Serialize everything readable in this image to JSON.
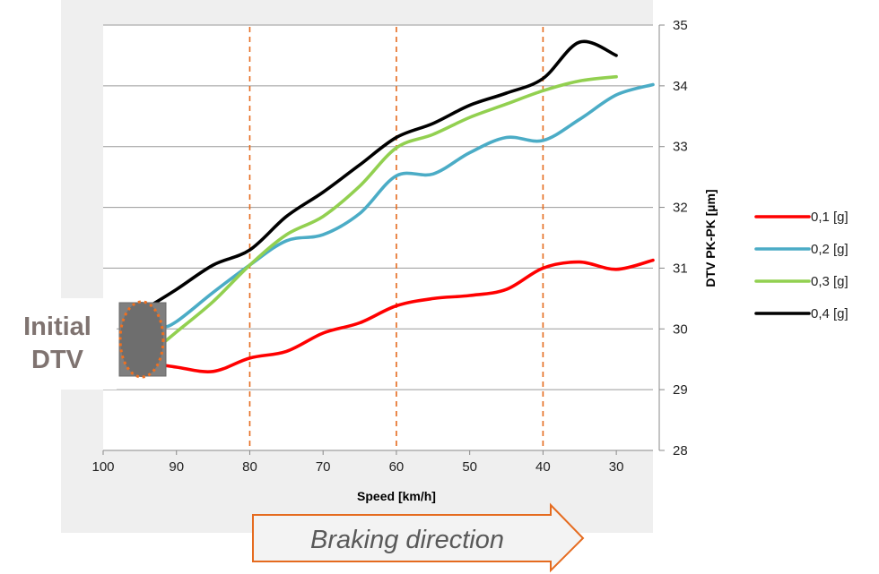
{
  "chart_data": {
    "type": "line",
    "xlabel": "Speed [km/h]",
    "ylabel": "DTV PK-PK [µm]",
    "xlim": [
      100,
      25
    ],
    "ylim": [
      28,
      35
    ],
    "x_ticks": [
      100,
      90,
      80,
      70,
      60,
      50,
      40,
      30
    ],
    "y_ticks": [
      28,
      29,
      30,
      31,
      32,
      33,
      34,
      35
    ],
    "y_axis_side": "right",
    "grid": "horizontal",
    "x_reference_lines": [
      80,
      60,
      40
    ],
    "legend_position": "right",
    "series": [
      {
        "name": "0,1 [g]",
        "color": "#ff0000",
        "points": [
          [
            94,
            29.45
          ],
          [
            90,
            29.37
          ],
          [
            85,
            29.3
          ],
          [
            80,
            29.52
          ],
          [
            75,
            29.63
          ],
          [
            70,
            29.93
          ],
          [
            65,
            30.1
          ],
          [
            60,
            30.38
          ],
          [
            55,
            30.5
          ],
          [
            50,
            30.55
          ],
          [
            45,
            30.65
          ],
          [
            40,
            31.0
          ],
          [
            35,
            31.1
          ],
          [
            30,
            30.98
          ],
          [
            25,
            31.13
          ]
        ]
      },
      {
        "name": "0,2 [g]",
        "color": "#4bacc6",
        "points": [
          [
            94,
            30.25
          ],
          [
            92,
            30.05
          ],
          [
            90,
            30.12
          ],
          [
            85,
            30.6
          ],
          [
            80,
            31.05
          ],
          [
            75,
            31.45
          ],
          [
            70,
            31.55
          ],
          [
            65,
            31.9
          ],
          [
            60,
            32.52
          ],
          [
            55,
            32.55
          ],
          [
            50,
            32.9
          ],
          [
            45,
            33.15
          ],
          [
            40,
            33.1
          ],
          [
            35,
            33.45
          ],
          [
            30,
            33.85
          ],
          [
            25,
            34.02
          ]
        ]
      },
      {
        "name": "0,3 [g]",
        "color": "#92d050",
        "points": [
          [
            92,
            29.75
          ],
          [
            90,
            29.95
          ],
          [
            85,
            30.45
          ],
          [
            80,
            31.05
          ],
          [
            75,
            31.55
          ],
          [
            70,
            31.85
          ],
          [
            65,
            32.35
          ],
          [
            60,
            32.98
          ],
          [
            55,
            33.2
          ],
          [
            50,
            33.48
          ],
          [
            45,
            33.7
          ],
          [
            40,
            33.92
          ],
          [
            35,
            34.08
          ],
          [
            30,
            34.15
          ]
        ]
      },
      {
        "name": "0,4 [g]",
        "color": "#000000",
        "points": [
          [
            94,
            30.35
          ],
          [
            90,
            30.65
          ],
          [
            85,
            31.05
          ],
          [
            80,
            31.3
          ],
          [
            75,
            31.85
          ],
          [
            70,
            32.25
          ],
          [
            65,
            32.7
          ],
          [
            60,
            33.15
          ],
          [
            55,
            33.38
          ],
          [
            50,
            33.68
          ],
          [
            45,
            33.88
          ],
          [
            40,
            34.12
          ],
          [
            35,
            34.72
          ],
          [
            30,
            34.5
          ]
        ]
      }
    ]
  },
  "callouts": {
    "initial_dtv_line1": "Initial",
    "initial_dtv_line2": "DTV",
    "braking_direction": "Braking direction"
  }
}
